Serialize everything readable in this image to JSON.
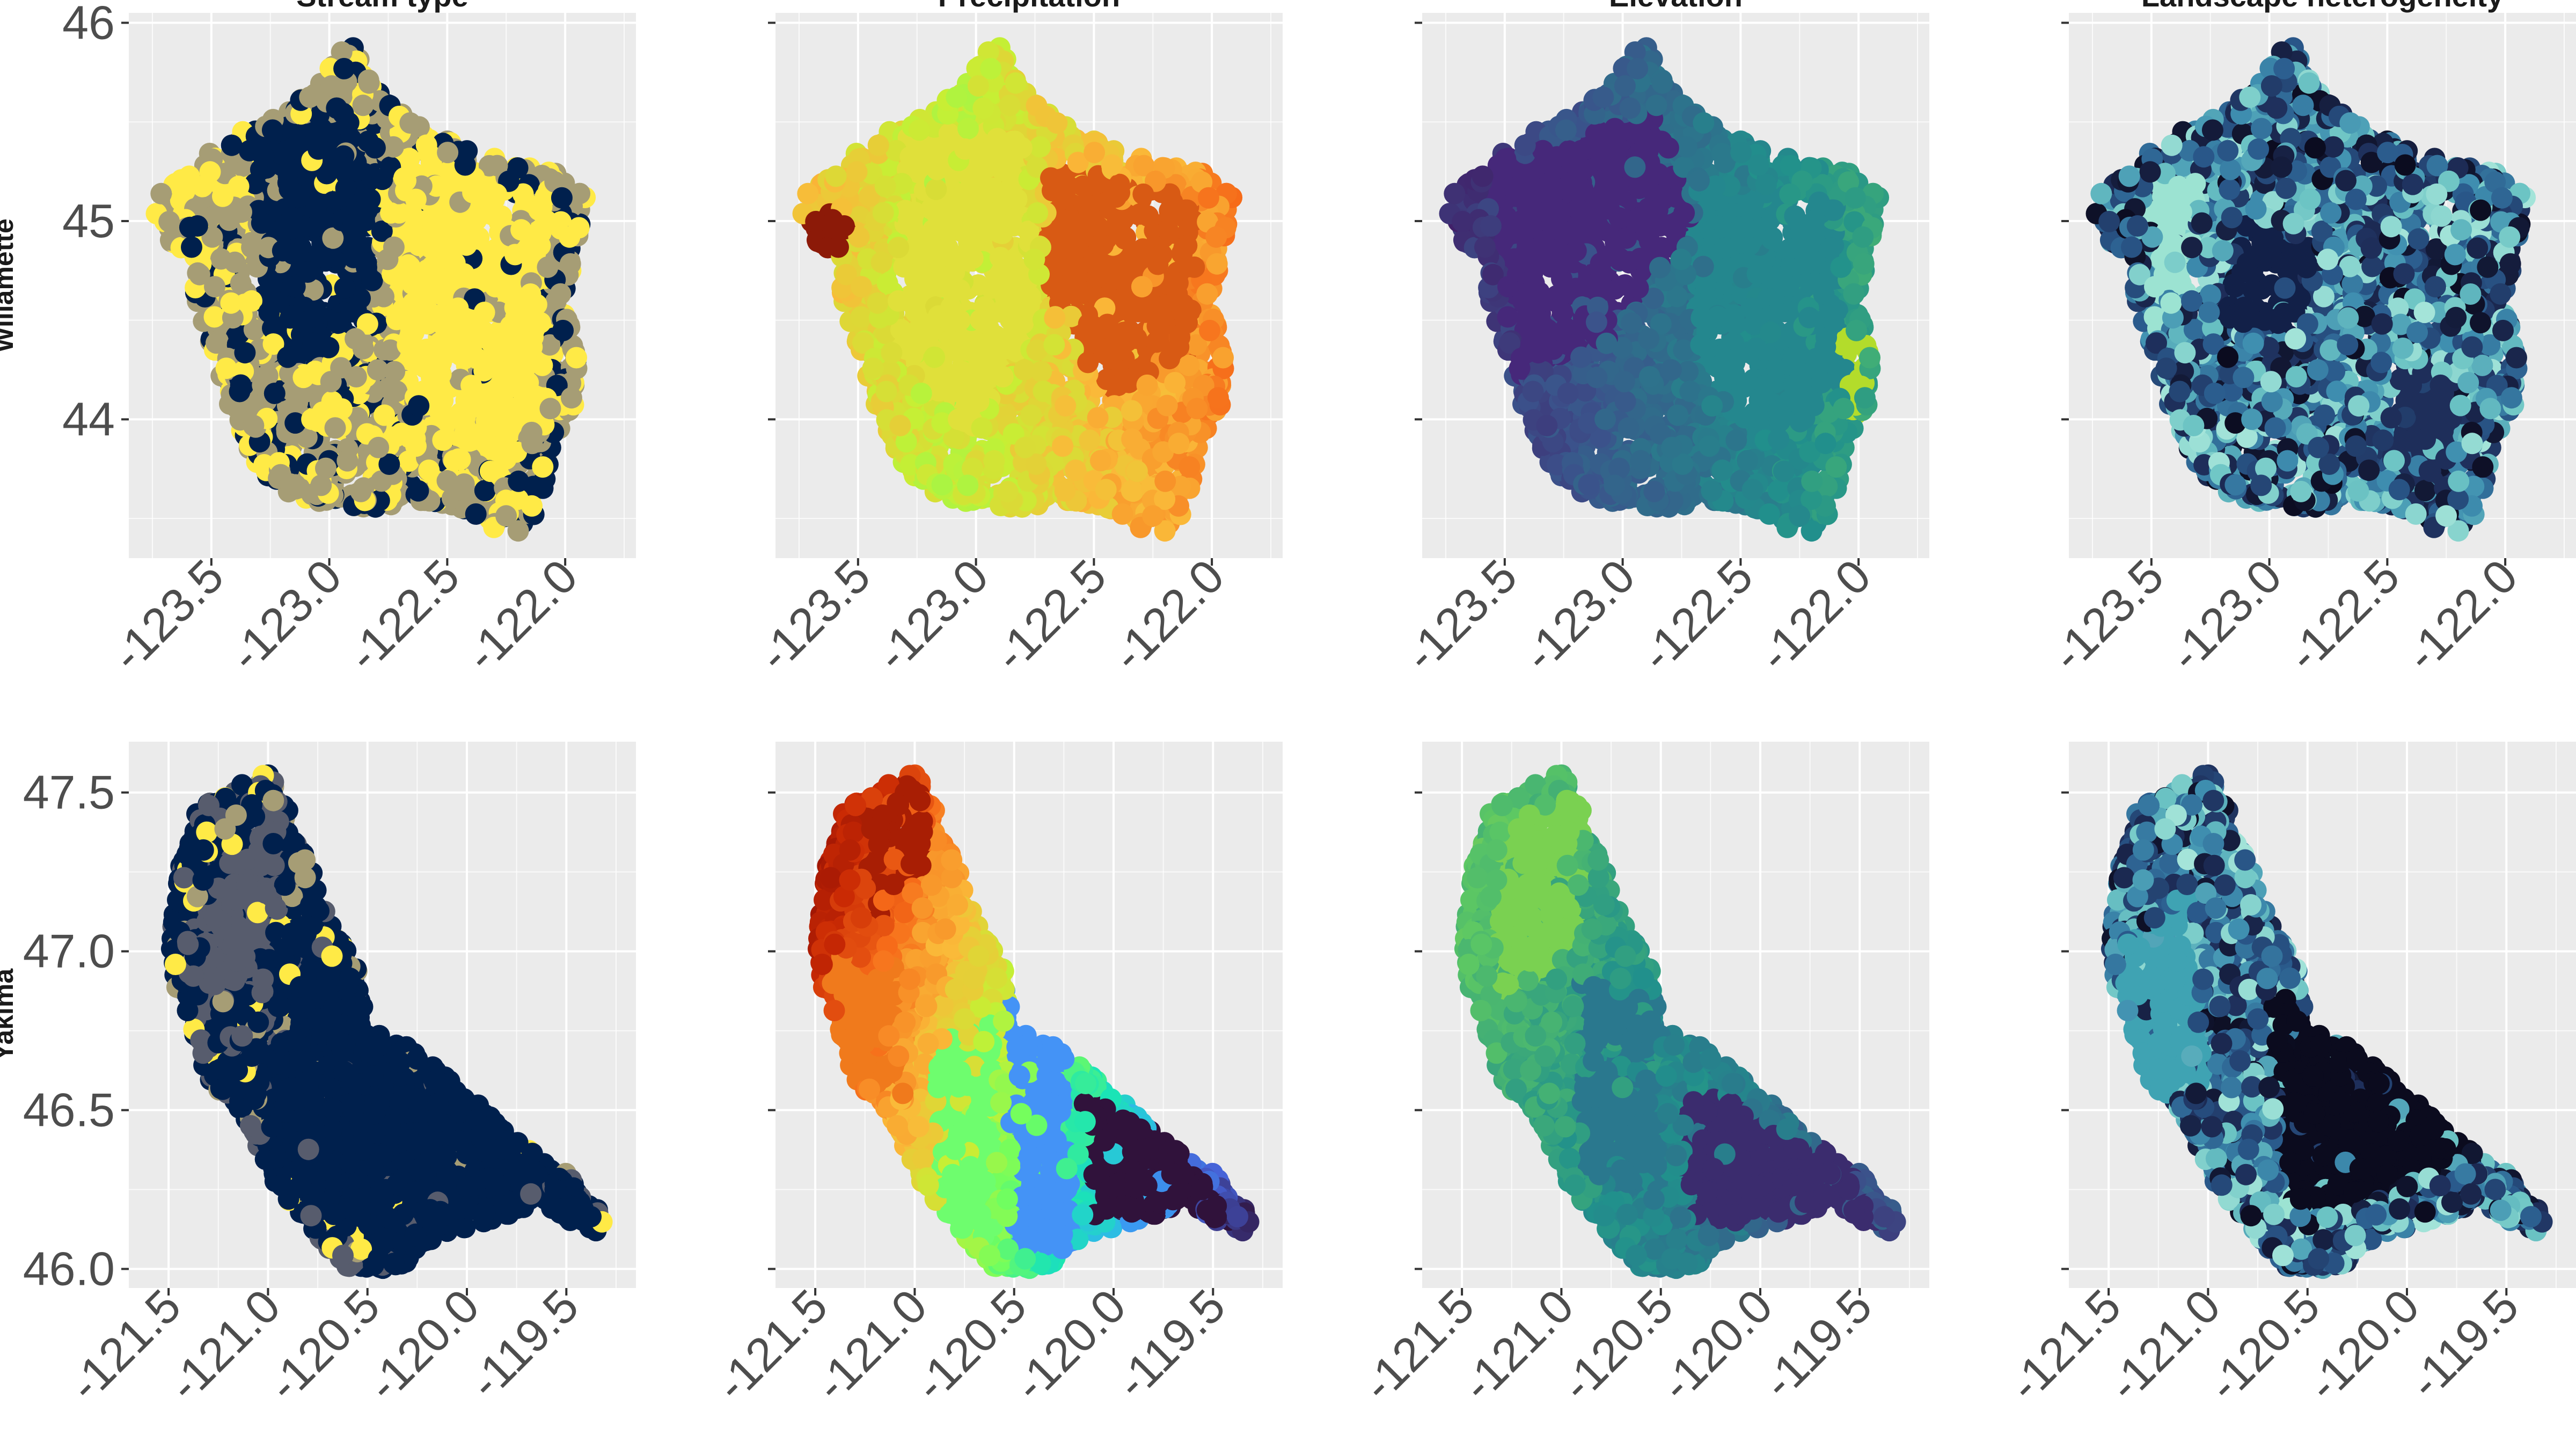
{
  "chart_data": {
    "type": "scatter",
    "layout": "facet-grid",
    "column_titles": [
      "Stream type",
      "Precipitation",
      "Elevation",
      "Landscape heterogeneity"
    ],
    "rows": [
      {
        "name": "Willamette",
        "xlim": [
          -123.85,
          -121.7
        ],
        "ylim": [
          43.3,
          46.05
        ],
        "x_ticks": [
          -123.5,
          -123.0,
          -122.5,
          -122.0
        ],
        "x_tick_labels": [
          "-123.5",
          "-123.0",
          "-122.5",
          "-122.0"
        ],
        "y_ticks": [
          44,
          45,
          46
        ],
        "y_tick_labels": [
          "44",
          "45",
          "46"
        ],
        "boundary_outline": [
          [
            -122.9,
            45.92
          ],
          [
            -122.85,
            45.75
          ],
          [
            -122.7,
            45.55
          ],
          [
            -122.55,
            45.42
          ],
          [
            -122.4,
            45.38
          ],
          [
            -122.25,
            45.3
          ],
          [
            -122.05,
            45.25
          ],
          [
            -121.9,
            45.13
          ],
          [
            -121.95,
            44.9
          ],
          [
            -122.0,
            44.6
          ],
          [
            -121.95,
            44.35
          ],
          [
            -121.95,
            44.1
          ],
          [
            -122.05,
            43.9
          ],
          [
            -122.1,
            43.6
          ],
          [
            -122.15,
            43.42
          ],
          [
            -122.3,
            43.45
          ],
          [
            -122.45,
            43.55
          ],
          [
            -122.6,
            43.58
          ],
          [
            -122.8,
            43.55
          ],
          [
            -123.0,
            43.58
          ],
          [
            -123.2,
            43.6
          ],
          [
            -123.3,
            43.75
          ],
          [
            -123.4,
            43.95
          ],
          [
            -123.45,
            44.15
          ],
          [
            -123.5,
            44.35
          ],
          [
            -123.55,
            44.55
          ],
          [
            -123.6,
            44.8
          ],
          [
            -123.75,
            45.0
          ],
          [
            -123.72,
            45.15
          ],
          [
            -123.55,
            45.3
          ],
          [
            -123.4,
            45.45
          ],
          [
            -123.2,
            45.55
          ],
          [
            -123.05,
            45.7
          ],
          [
            -122.95,
            45.85
          ]
        ],
        "stream_type_zones": [
          {
            "color": "#00204D",
            "polygon": [
              [
                -123.35,
                45.45
              ],
              [
                -123.0,
                45.55
              ],
              [
                -122.8,
                45.45
              ],
              [
                -122.75,
                45.2
              ],
              [
                -122.85,
                44.95
              ],
              [
                -122.8,
                44.7
              ],
              [
                -122.95,
                44.4
              ],
              [
                -123.2,
                44.25
              ],
              [
                -123.3,
                44.5
              ],
              [
                -123.28,
                44.8
              ],
              [
                -123.32,
                45.1
              ]
            ]
          },
          {
            "color": "#FFEA46",
            "polygon": [
              [
                -122.7,
                45.35
              ],
              [
                -122.35,
                45.25
              ],
              [
                -122.05,
                45.1
              ],
              [
                -122.1,
                44.5
              ],
              [
                -122.05,
                44.1
              ],
              [
                -122.25,
                43.75
              ],
              [
                -122.55,
                43.9
              ],
              [
                -122.7,
                44.25
              ],
              [
                -122.75,
                44.7
              ],
              [
                -122.7,
                45.05
              ]
            ]
          }
        ],
        "precipitation_zones": [
          {
            "color": "#E0E03A",
            "polygon": [
              [
                -123.3,
                45.45
              ],
              [
                -122.8,
                45.45
              ],
              [
                -122.75,
                44.5
              ],
              [
                -123.0,
                43.9
              ],
              [
                -123.35,
                44.3
              ]
            ]
          },
          {
            "color": "#D85A14",
            "polygon": [
              [
                -122.7,
                45.3
              ],
              [
                -122.05,
                45.1
              ],
              [
                -122.1,
                44.3
              ],
              [
                -122.45,
                44.1
              ],
              [
                -122.7,
                44.7
              ]
            ]
          },
          {
            "color": "#8C1A08",
            "polygon": [
              [
                -123.72,
                45.1
              ],
              [
                -123.55,
                45.0
              ],
              [
                -123.58,
                44.8
              ],
              [
                -123.75,
                44.95
              ]
            ]
          }
        ],
        "elevation_zones": [
          {
            "color": "#46287A",
            "polygon": [
              [
                -123.6,
                45.3
              ],
              [
                -122.85,
                45.55
              ],
              [
                -122.7,
                45.0
              ],
              [
                -123.05,
                44.4
              ],
              [
                -123.45,
                44.2
              ]
            ]
          },
          {
            "color": "#24878E",
            "polygon": [
              [
                -122.7,
                45.2
              ],
              [
                -122.1,
                45.1
              ],
              [
                -122.05,
                44.2
              ],
              [
                -122.4,
                43.8
              ],
              [
                -122.7,
                44.3
              ]
            ]
          },
          {
            "color": "#B3DC2B",
            "polygon": [
              [
                -122.05,
                44.5
              ],
              [
                -121.95,
                44.35
              ],
              [
                -122.0,
                44.0
              ],
              [
                -122.12,
                44.2
              ]
            ]
          }
        ],
        "heterogeneity_zones": [
          {
            "color": "#122048",
            "polygon": [
              [
                -123.1,
                45.0
              ],
              [
                -122.8,
                44.9
              ],
              [
                -122.9,
                44.4
              ],
              [
                -123.2,
                44.5
              ]
            ]
          },
          {
            "color": "#9CE3D2",
            "polygon": [
              [
                -123.5,
                45.2
              ],
              [
                -123.3,
                45.25
              ],
              [
                -123.35,
                44.6
              ],
              [
                -123.5,
                44.4
              ]
            ]
          },
          {
            "color": "#1E2E5A",
            "polygon": [
              [
                -122.5,
                44.3
              ],
              [
                -122.2,
                44.2
              ],
              [
                -122.25,
                43.6
              ],
              [
                -122.5,
                43.8
              ]
            ]
          }
        ]
      },
      {
        "name": "Yakima",
        "xlim": [
          -121.7,
          -119.15
        ],
        "ylim": [
          45.94,
          47.66
        ],
        "x_ticks": [
          -121.5,
          -121.0,
          -120.5,
          -120.0,
          -119.5
        ],
        "x_tick_labels": [
          "-121.5",
          "-121.0",
          "-120.5",
          "-120.0",
          "-119.5"
        ],
        "y_ticks": [
          46.0,
          46.5,
          47.0,
          47.5
        ],
        "y_tick_labels": [
          "46.0",
          "46.5",
          "47.0",
          "47.5"
        ],
        "boundary_outline": [
          [
            -121.0,
            47.57
          ],
          [
            -120.9,
            47.45
          ],
          [
            -120.8,
            47.3
          ],
          [
            -120.7,
            47.1
          ],
          [
            -120.55,
            46.95
          ],
          [
            -120.5,
            46.75
          ],
          [
            -120.3,
            46.7
          ],
          [
            -120.0,
            46.55
          ],
          [
            -119.75,
            46.4
          ],
          [
            -119.45,
            46.28
          ],
          [
            -119.3,
            46.15
          ],
          [
            -119.35,
            46.1
          ],
          [
            -119.6,
            46.2
          ],
          [
            -119.9,
            46.15
          ],
          [
            -120.15,
            46.1
          ],
          [
            -120.35,
            46.0
          ],
          [
            -120.6,
            46.0
          ],
          [
            -120.75,
            46.1
          ],
          [
            -120.95,
            46.25
          ],
          [
            -121.1,
            46.45
          ],
          [
            -121.3,
            46.6
          ],
          [
            -121.45,
            46.85
          ],
          [
            -121.5,
            47.05
          ],
          [
            -121.45,
            47.25
          ],
          [
            -121.35,
            47.45
          ],
          [
            -121.2,
            47.5
          ]
        ],
        "stream_type_zones": [
          {
            "color": "#00204D",
            "polygon": [
              [
                -120.8,
                47.05
              ],
              [
                -120.4,
                46.75
              ],
              [
                -119.7,
                46.45
              ],
              [
                -119.35,
                46.15
              ],
              [
                -119.9,
                46.15
              ],
              [
                -120.4,
                46.05
              ],
              [
                -120.85,
                46.2
              ],
              [
                -121.0,
                46.45
              ],
              [
                -120.9,
                46.75
              ]
            ]
          },
          {
            "color": "#575C6D",
            "polygon": [
              [
                -121.3,
                47.2
              ],
              [
                -120.95,
                47.45
              ],
              [
                -120.9,
                47.15
              ],
              [
                -121.15,
                46.9
              ],
              [
                -121.35,
                46.8
              ]
            ]
          }
        ],
        "precipitation_zones": [
          {
            "color": "#A81E04",
            "polygon": [
              [
                -121.3,
                47.45
              ],
              [
                -121.0,
                47.55
              ],
              [
                -120.9,
                47.3
              ],
              [
                -121.2,
                47.1
              ]
            ]
          },
          {
            "color": "#F07A1C",
            "polygon": [
              [
                -121.45,
                47.0
              ],
              [
                -121.1,
                46.95
              ],
              [
                -121.05,
                46.55
              ],
              [
                -121.35,
                46.6
              ]
            ]
          },
          {
            "color": "#6EFD6E",
            "polygon": [
              [
                -120.9,
                46.7
              ],
              [
                -120.6,
                46.8
              ],
              [
                -120.6,
                46.1
              ],
              [
                -120.85,
                46.1
              ]
            ]
          },
          {
            "color": "#4493F6",
            "polygon": [
              [
                -120.55,
                46.9
              ],
              [
                -120.2,
                46.7
              ],
              [
                -120.2,
                46.05
              ],
              [
                -120.5,
                46.05
              ]
            ]
          },
          {
            "color": "#30123B",
            "polygon": [
              [
                -120.15,
                46.55
              ],
              [
                -119.7,
                46.4
              ],
              [
                -119.4,
                46.15
              ],
              [
                -120.1,
                46.15
              ]
            ]
          }
        ],
        "elevation_zones": [
          {
            "color": "#7AD151",
            "polygon": [
              [
                -121.3,
                47.4
              ],
              [
                -120.9,
                47.5
              ],
              [
                -120.9,
                47.0
              ],
              [
                -121.35,
                46.85
              ]
            ]
          },
          {
            "color": "#2A788E",
            "polygon": [
              [
                -120.9,
                46.9
              ],
              [
                -120.5,
                46.85
              ],
              [
                -120.5,
                46.2
              ],
              [
                -120.9,
                46.3
              ]
            ]
          },
          {
            "color": "#3B2C6E",
            "polygon": [
              [
                -120.4,
                46.6
              ],
              [
                -119.6,
                46.35
              ],
              [
                -119.4,
                46.15
              ],
              [
                -120.35,
                46.15
              ]
            ]
          }
        ],
        "heterogeneity_zones": [
          {
            "color": "#0B0B1E",
            "polygon": [
              [
                -120.7,
                46.9
              ],
              [
                -120.3,
                46.7
              ],
              [
                -119.6,
                46.4
              ],
              [
                -120.2,
                46.2
              ],
              [
                -120.6,
                46.2
              ]
            ]
          },
          {
            "color": "#3FA3B3",
            "polygon": [
              [
                -121.45,
                47.0
              ],
              [
                -121.1,
                47.2
              ],
              [
                -121.0,
                46.6
              ],
              [
                -121.3,
                46.5
              ]
            ]
          },
          {
            "color": "#9CE3D2",
            "polygon": [
              [
                -120.6,
                46.4
              ],
              [
                -120.45,
                46.45
              ],
              [
                -120.5,
                46.15
              ],
              [
                -120.65,
                46.2
              ]
            ]
          }
        ]
      }
    ],
    "color_scales": {
      "stream_type": [
        "#00204D",
        "#575C6D",
        "#A69D75",
        "#FFEA46"
      ],
      "precipitation": [
        "#30123B",
        "#4662D7",
        "#36AAF9",
        "#1AE4B6",
        "#72FE5E",
        "#C7EF34",
        "#FABA39",
        "#F66B19",
        "#CA2A04",
        "#7A0403"
      ],
      "elevation": [
        "#440154",
        "#3B528B",
        "#21908C",
        "#5DC863",
        "#FDE725"
      ],
      "heterogeneity": [
        "#0B0B1E",
        "#1E2E5A",
        "#2A5A8C",
        "#3F8FB0",
        "#6CC4C4",
        "#B7EFE0"
      ]
    },
    "grid": true,
    "legend": "none"
  }
}
